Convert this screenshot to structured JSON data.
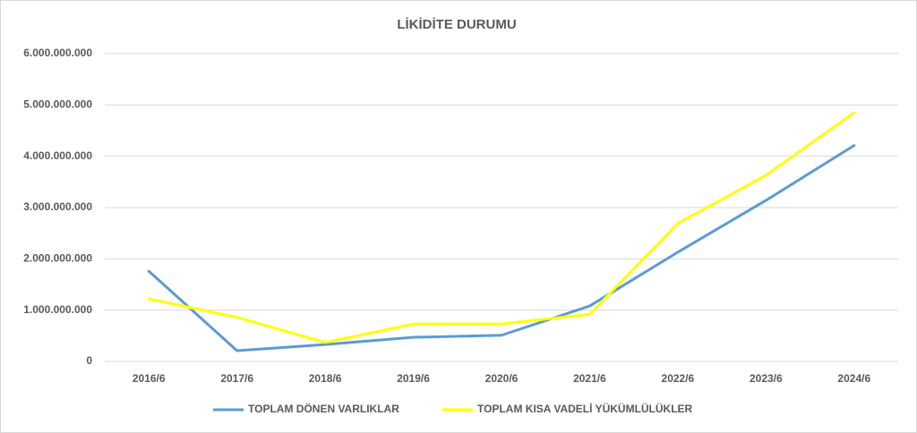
{
  "chart_data": {
    "type": "line",
    "title": "LİKİDİTE DURUMU",
    "categories": [
      "2016/6",
      "2017/6",
      "2018/6",
      "2019/6",
      "2020/6",
      "2021/6",
      "2022/6",
      "2023/6",
      "2024/6"
    ],
    "series": [
      {
        "name": "TOPLAM DÖNEN VARLIKLAR",
        "color": "#5b9bd5",
        "values": [
          1760000000,
          210000000,
          330000000,
          470000000,
          510000000,
          1080000000,
          2130000000,
          3140000000,
          4210000000
        ]
      },
      {
        "name": "TOPLAM KISA VADELİ YÜKÜMLÜLÜKLER",
        "color": "#ffff00",
        "values": [
          1220000000,
          860000000,
          370000000,
          730000000,
          730000000,
          920000000,
          2690000000,
          3630000000,
          4850000000
        ]
      }
    ],
    "ylim": [
      0,
      6000000000
    ],
    "yticks": [
      0,
      {
        "value": 1000000000,
        "label": "1.000.000.000"
      },
      {
        "value": 2000000000,
        "label": "2.000.000.000"
      },
      {
        "value": 3000000000,
        "label": "3.000.000.000"
      },
      {
        "value": 4000000000,
        "label": "4.000.000.000"
      },
      {
        "value": 5000000000,
        "label": "5.000.000.000"
      },
      {
        "value": 6000000000,
        "label": "6.000.000.000"
      }
    ],
    "grid": true,
    "legend": "bottom"
  }
}
